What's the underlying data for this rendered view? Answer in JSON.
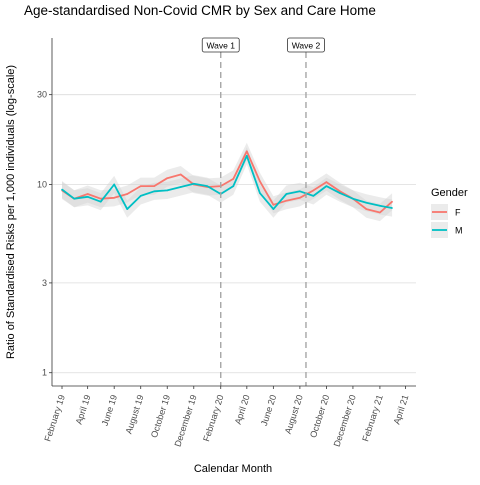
{
  "chart_data": {
    "type": "line",
    "title": "Age-standardised Non-Covid CMR by Sex and Care Home",
    "xlabel": "Calendar Month",
    "ylabel": "Ratio of Standardised Risks per 1,000 individuals (log-scale)",
    "y_scale": "log",
    "ylim": [
      0.85,
      60
    ],
    "y_ticks": [
      1,
      3,
      10,
      30
    ],
    "y_tick_labels": [
      "1",
      "3",
      "10",
      "30"
    ],
    "xlim": [
      "2019-01-09",
      "2021-04-25"
    ],
    "x_ticks": [
      "2019-02-01",
      "2019-04-01",
      "2019-06-01",
      "2019-08-01",
      "2019-10-01",
      "2019-12-01",
      "2020-02-01",
      "2020-04-01",
      "2020-06-01",
      "2020-08-01",
      "2020-10-01",
      "2020-12-01",
      "2021-02-01",
      "2021-04-01"
    ],
    "x_tick_labels": [
      "February 19",
      "April 19",
      "June 19",
      "August 19",
      "October 19",
      "December 19",
      "February 20",
      "April 20",
      "June 20",
      "August 20",
      "October 20",
      "December 20",
      "February 21",
      "April 21"
    ],
    "grid": true,
    "legend": {
      "title": "Gender",
      "position": "right"
    },
    "vlines": [
      {
        "x": "2020-02-01",
        "label": "Wave 1"
      },
      {
        "x": "2020-08-15",
        "label": "Wave 2"
      }
    ],
    "series": [
      {
        "name": "F",
        "color": "#f8766d",
        "points": [
          [
            "2019-02-01",
            9.3
          ],
          [
            "2019-03-01",
            8.4
          ],
          [
            "2019-04-01",
            8.9
          ],
          [
            "2019-05-01",
            8.4
          ],
          [
            "2019-06-01",
            8.5
          ],
          [
            "2019-07-01",
            8.9
          ],
          [
            "2019-08-01",
            9.8
          ],
          [
            "2019-09-01",
            9.8
          ],
          [
            "2019-10-01",
            10.8
          ],
          [
            "2019-11-01",
            11.3
          ],
          [
            "2019-12-01",
            10.0
          ],
          [
            "2020-01-01",
            9.7
          ],
          [
            "2020-02-01",
            9.8
          ],
          [
            "2020-03-01",
            10.7
          ],
          [
            "2020-04-01",
            15.0
          ],
          [
            "2020-05-01",
            10.4
          ],
          [
            "2020-06-01",
            7.8
          ],
          [
            "2020-07-01",
            8.2
          ],
          [
            "2020-08-01",
            8.5
          ],
          [
            "2020-09-01",
            9.3
          ],
          [
            "2020-10-01",
            10.3
          ],
          [
            "2020-11-01",
            9.2
          ],
          [
            "2020-12-01",
            8.4
          ],
          [
            "2021-01-01",
            7.4
          ],
          [
            "2021-02-01",
            7.1
          ],
          [
            "2021-03-01",
            8.1
          ]
        ],
        "band": [
          0.9,
          1.11
        ]
      },
      {
        "name": "M",
        "color": "#00bfc4",
        "points": [
          [
            "2019-02-01",
            9.4
          ],
          [
            "2019-03-01",
            8.4
          ],
          [
            "2019-04-01",
            8.6
          ],
          [
            "2019-05-01",
            8.1
          ],
          [
            "2019-06-01",
            10.0
          ],
          [
            "2019-07-01",
            7.4
          ],
          [
            "2019-08-01",
            8.7
          ],
          [
            "2019-09-01",
            9.2
          ],
          [
            "2019-10-01",
            9.3
          ],
          [
            "2019-11-01",
            9.7
          ],
          [
            "2019-12-01",
            10.1
          ],
          [
            "2020-01-01",
            9.8
          ],
          [
            "2020-02-01",
            8.9
          ],
          [
            "2020-03-01",
            9.8
          ],
          [
            "2020-04-01",
            14.2
          ],
          [
            "2020-05-01",
            9.0
          ],
          [
            "2020-06-01",
            7.4
          ],
          [
            "2020-07-01",
            8.9
          ],
          [
            "2020-08-01",
            9.2
          ],
          [
            "2020-09-01",
            8.7
          ],
          [
            "2020-10-01",
            9.8
          ],
          [
            "2020-11-01",
            9.0
          ],
          [
            "2020-12-01",
            8.4
          ],
          [
            "2021-01-01",
            8.0
          ],
          [
            "2021-02-01",
            7.7
          ],
          [
            "2021-03-01",
            7.5
          ]
        ],
        "band": [
          0.9,
          1.11
        ]
      }
    ]
  }
}
